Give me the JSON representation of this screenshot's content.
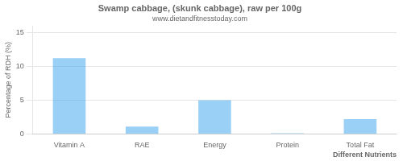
{
  "chart_data": {
    "type": "bar",
    "title": "Swamp cabbage, (skunk cabbage), raw per 100g",
    "subtitle": "www.dietandfitnesstoday.com",
    "xlabel": "Different Nutrients",
    "ylabel": "Percentage of RDH (%)",
    "categories": [
      "Vitamin A",
      "RAE",
      "Energy",
      "Protein",
      "Total Fat"
    ],
    "values": [
      11.2,
      1.1,
      5.0,
      0.1,
      2.2
    ],
    "ylim": [
      0,
      16
    ],
    "yticks": [
      0,
      5,
      10,
      15
    ],
    "grid": true
  }
}
